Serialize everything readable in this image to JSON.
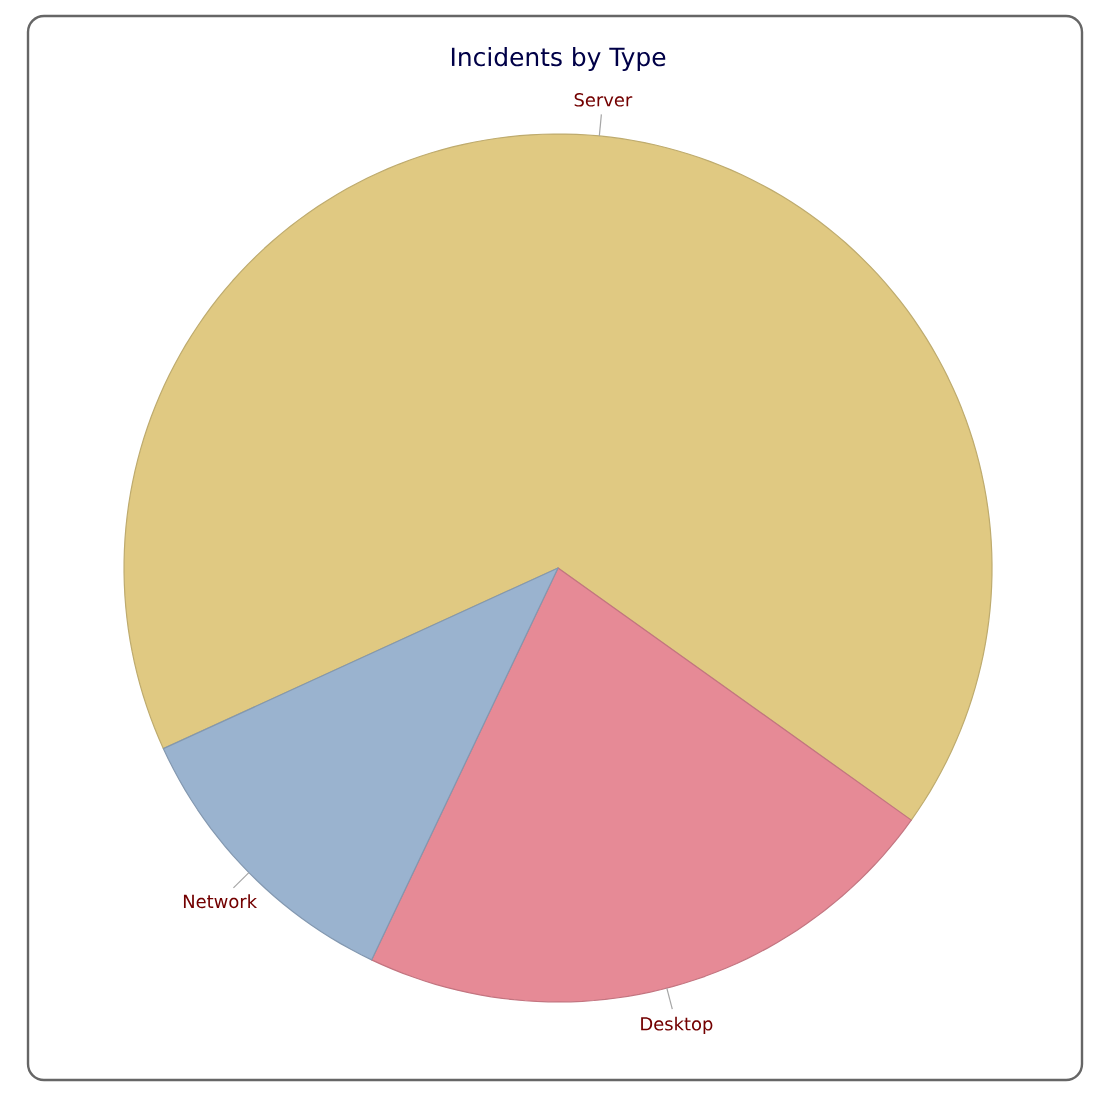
{
  "chart_data": {
    "type": "pie",
    "title": "Incidents by Type",
    "categories": [
      "Server",
      "Desktop",
      "Network"
    ],
    "values": [
      66.7,
      22.2,
      11.1
    ],
    "colors": [
      "#e0c982",
      "#e68a96",
      "#9ab3cf"
    ]
  }
}
